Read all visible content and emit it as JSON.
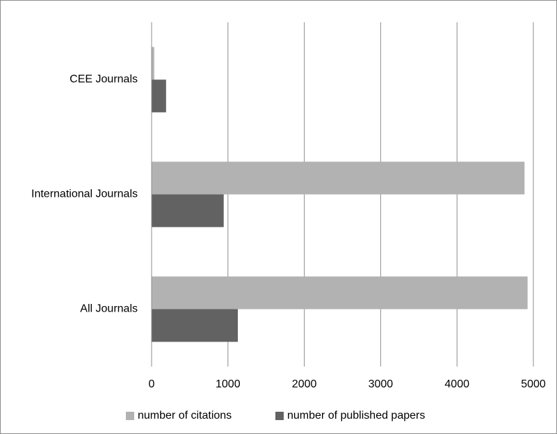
{
  "chart_data": {
    "type": "bar",
    "orientation": "horizontal",
    "categories": [
      "CEE Journals",
      "International Journals",
      "All Journals"
    ],
    "series": [
      {
        "name": "number of citations",
        "color": "#b2b2b2",
        "values": [
          30,
          4880,
          4920
        ]
      },
      {
        "name": "number of published papers",
        "color": "#626262",
        "values": [
          185,
          940,
          1125
        ]
      }
    ],
    "x_ticks": [
      0,
      1000,
      2000,
      3000,
      4000,
      5000
    ],
    "xlim": [
      0,
      5000
    ],
    "title": "",
    "xlabel": "",
    "ylabel": "",
    "grid": "vertical",
    "legend_position": "bottom"
  }
}
